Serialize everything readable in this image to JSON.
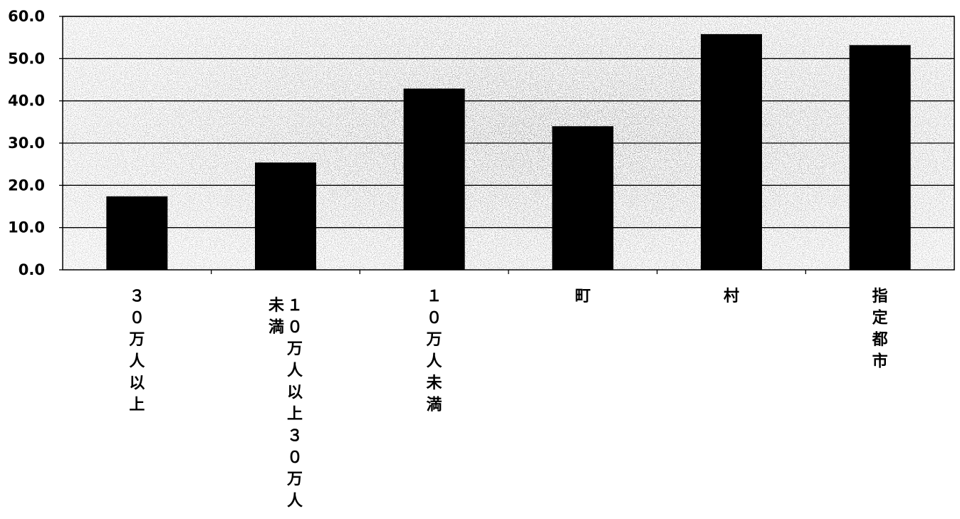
{
  "chart_data": {
    "type": "bar",
    "categories": [
      "３０万人以上",
      "１０万人以上３０万人未満",
      "１０万人未満",
      "町",
      "村",
      "指定都市"
    ],
    "category_label_columns": [
      [
        "３０万人以上"
      ],
      [
        "１０万人以上３０万人",
        "未満"
      ],
      [
        "１０万人未満"
      ],
      [
        "町"
      ],
      [
        "村"
      ],
      [
        "指定都市"
      ]
    ],
    "values": [
      17.4,
      25.4,
      42.9,
      34.0,
      55.8,
      53.2
    ],
    "ylim": [
      0,
      60
    ],
    "yticks": [
      "0.0",
      "10.0",
      "20.0",
      "30.0",
      "40.0",
      "50.0",
      "60.0"
    ],
    "grid": true,
    "legend": "none",
    "title": "",
    "xlabel": "",
    "ylabel": "",
    "colors": {
      "bar": "#000000",
      "gridline": "#000000",
      "plot_background": "#cfcfcf"
    }
  }
}
